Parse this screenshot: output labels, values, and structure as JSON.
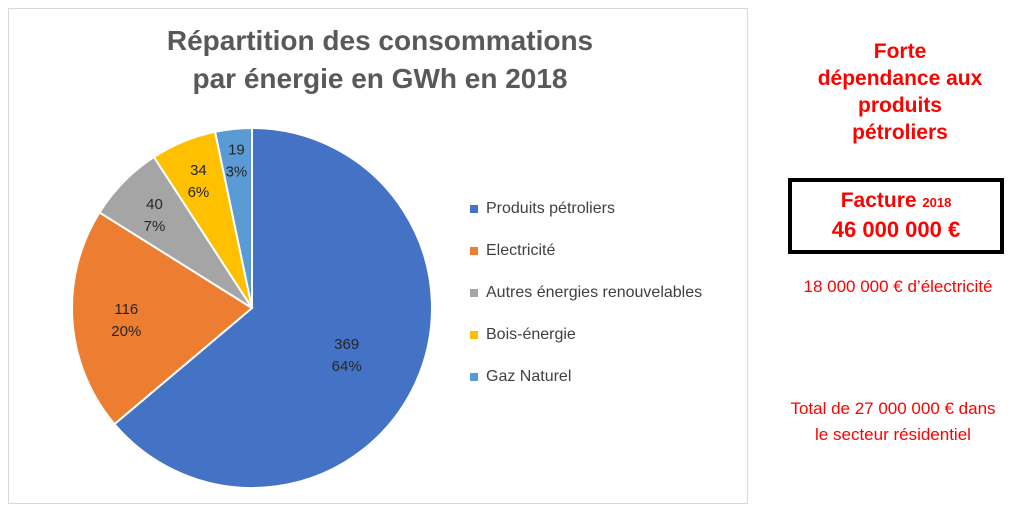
{
  "chart_data": {
    "type": "pie",
    "title": "Répartition des consommations par énergie en GWh en 2018",
    "title_lines": [
      "Répartition des consommations",
      "par énergie en GWh en 2018"
    ],
    "series": [
      {
        "name": "Produits pétroliers",
        "value": 369,
        "percent_label": "64%",
        "color": "#4472c4"
      },
      {
        "name": "Electricité",
        "value": 116,
        "percent_label": "20%",
        "color": "#ed7d31"
      },
      {
        "name": "Autres énergies renouvelables",
        "value": 40,
        "percent_label": "7%",
        "color": "#a5a5a5"
      },
      {
        "name": "Bois-énergie",
        "value": 34,
        "percent_label": "6%",
        "color": "#ffc000"
      },
      {
        "name": "Gaz Naturel",
        "value": 19,
        "percent_label": "3%",
        "color": "#5b9bd5"
      }
    ],
    "legend_position": "right"
  },
  "annotations": {
    "headline_lines": [
      "Forte",
      "dépendance aux",
      "produits",
      "pétroliers"
    ],
    "bill_label": "Facture",
    "bill_year": "2018",
    "bill_amount": "46 000 000 €",
    "electricity_note": "18 000 000 € d’électricité",
    "residential_note_lines": [
      "Total de 27 000 000 € dans",
      "le secteur résidentiel"
    ],
    "text_color": "#ff0000"
  }
}
